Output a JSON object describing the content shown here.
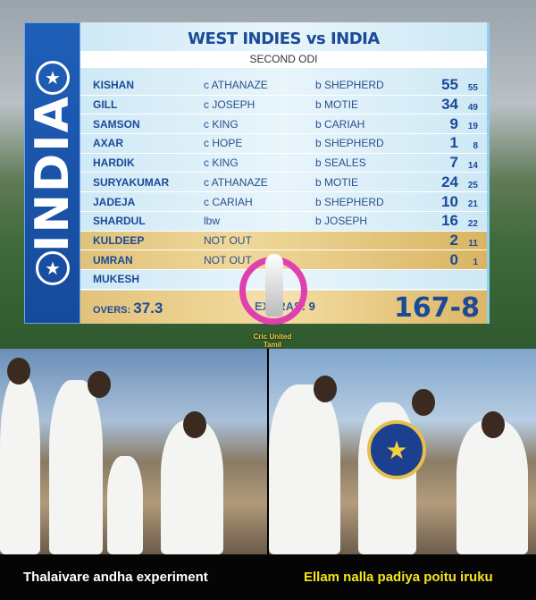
{
  "team": "INDIA",
  "header": {
    "title": "WEST INDIES vs INDIA",
    "subtitle": "SECOND ODI"
  },
  "batting": [
    {
      "name": "KISHAN",
      "how": "c ATHANAZE",
      "bowler": "b SHEPHERD",
      "runs": "55",
      "balls": "55",
      "status": "out"
    },
    {
      "name": "GILL",
      "how": "c JOSEPH",
      "bowler": "b MOTIE",
      "runs": "34",
      "balls": "49",
      "status": "out"
    },
    {
      "name": "SAMSON",
      "how": "c KING",
      "bowler": "b CARIAH",
      "runs": "9",
      "balls": "19",
      "status": "out"
    },
    {
      "name": "AXAR",
      "how": "c HOPE",
      "bowler": "b SHEPHERD",
      "runs": "1",
      "balls": "8",
      "status": "out"
    },
    {
      "name": "HARDIK",
      "how": "c KING",
      "bowler": "b SEALES",
      "runs": "7",
      "balls": "14",
      "status": "out"
    },
    {
      "name": "SURYAKUMAR",
      "how": "c ATHANAZE",
      "bowler": "b MOTIE",
      "runs": "24",
      "balls": "25",
      "status": "out"
    },
    {
      "name": "JADEJA",
      "how": "c CARIAH",
      "bowler": "b SHEPHERD",
      "runs": "10",
      "balls": "21",
      "status": "out"
    },
    {
      "name": "SHARDUL",
      "how": "lbw",
      "bowler": "b JOSEPH",
      "runs": "16",
      "balls": "22",
      "status": "out"
    },
    {
      "name": "KULDEEP",
      "how": "NOT OUT",
      "bowler": "",
      "runs": "2",
      "balls": "11",
      "status": "notout"
    },
    {
      "name": "UMRAN",
      "how": "NOT OUT",
      "bowler": "",
      "runs": "0",
      "balls": "1",
      "status": "notout"
    },
    {
      "name": "MUKESH",
      "how": "",
      "bowler": "",
      "runs": "",
      "balls": "",
      "status": "dnb"
    }
  ],
  "footer": {
    "overs_label": "OVERS:",
    "overs": "37.3",
    "extras": "EXTRAS: 9",
    "total": "167-8"
  },
  "watermark": "CricUnited Tamil",
  "captions": {
    "left": "Thalaivare andha experiment",
    "right": "Ellam nalla padiya poitu iruku"
  },
  "colors": {
    "navy": "#1b4a96",
    "gold": "#e0c27a",
    "caption_right": "#f5e51b",
    "trophy_ring": "#e03fb0"
  }
}
